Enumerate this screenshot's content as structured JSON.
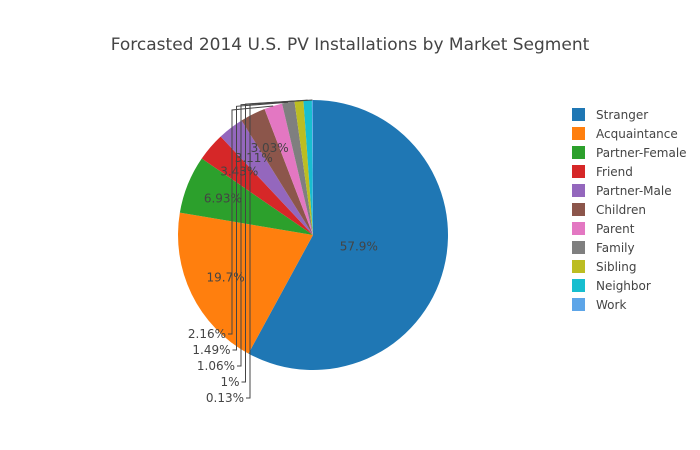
{
  "chart_data": {
    "type": "pie",
    "title": "Forcasted 2014 U.S. PV Installations by Market Segment",
    "legend_position": "right",
    "slices": [
      {
        "label": "Stranger",
        "value": 57.9,
        "display": "57.9%",
        "color": "#1f77b4",
        "text_position": "inside"
      },
      {
        "label": "Acquaintance",
        "value": 19.7,
        "display": "19.7%",
        "color": "#ff7f0e",
        "text_position": "inside"
      },
      {
        "label": "Partner-Female",
        "value": 6.93,
        "display": "6.93%",
        "color": "#2ca02c",
        "text_position": "inside"
      },
      {
        "label": "Friend",
        "value": 3.43,
        "display": "3.43%",
        "color": "#d62728",
        "text_position": "inside"
      },
      {
        "label": "Partner-Male",
        "value": 3.11,
        "display": "3.11%",
        "color": "#9467bd",
        "text_position": "inside"
      },
      {
        "label": "Children",
        "value": 3.03,
        "display": "3.03%",
        "color": "#8c564b",
        "text_position": "inside"
      },
      {
        "label": "Parent",
        "value": 2.16,
        "display": "2.16%",
        "color": "#e377c2",
        "text_position": "outside"
      },
      {
        "label": "Family",
        "value": 1.49,
        "display": "1.49%",
        "color": "#7f7f7f",
        "text_position": "outside"
      },
      {
        "label": "Sibling",
        "value": 1.06,
        "display": "1.06%",
        "color": "#bcbd22",
        "text_position": "outside"
      },
      {
        "label": "Neighbor",
        "value": 1.0,
        "display": "1%",
        "color": "#17becf",
        "text_position": "outside"
      },
      {
        "label": "Work",
        "value": 0.13,
        "display": "0.13%",
        "color": "#5da5e8",
        "text_position": "outside"
      }
    ]
  }
}
